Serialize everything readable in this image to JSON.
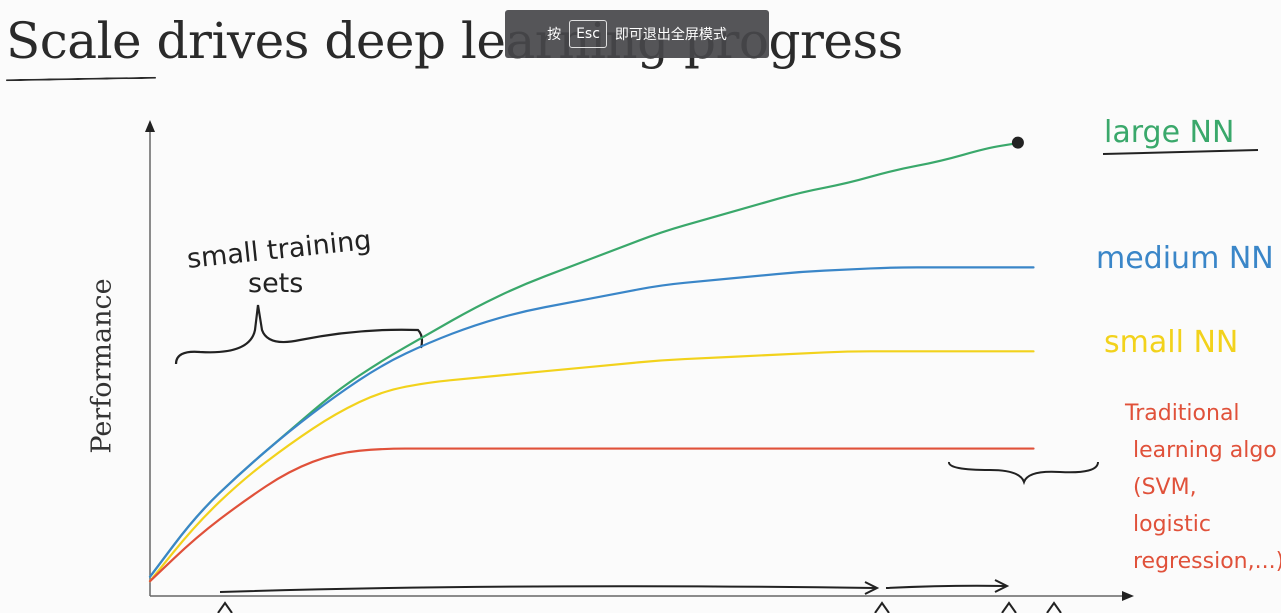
{
  "toast": {
    "press": "按",
    "key": "Esc",
    "message": "即可退出全屏模式"
  },
  "slide": {
    "title": "Scale drives deep learning progress",
    "annotation": [
      "small training",
      "sets"
    ]
  },
  "chart_data": {
    "type": "line",
    "title": "Scale drives deep learning progress",
    "xlabel": "",
    "ylabel": "Performance",
    "xlim": [
      0,
      1
    ],
    "ylim": [
      0,
      1
    ],
    "grid": false,
    "legend": "right, labels at line ends",
    "series": [
      {
        "name": "large NN",
        "color": "#3aa86b",
        "x": [
          0,
          0.05,
          0.1,
          0.15,
          0.2,
          0.25,
          0.3,
          0.35,
          0.4,
          0.45,
          0.5,
          0.55,
          0.6,
          0.65,
          0.7,
          0.75,
          0.8,
          0.85,
          0.9,
          0.93
        ],
        "y": [
          0.03,
          0.17,
          0.27,
          0.36,
          0.45,
          0.52,
          0.58,
          0.64,
          0.69,
          0.73,
          0.77,
          0.81,
          0.84,
          0.87,
          0.9,
          0.92,
          0.95,
          0.97,
          1.0,
          1.01
        ]
      },
      {
        "name": "medium NN",
        "color": "#3a86c8",
        "x": [
          0,
          0.05,
          0.1,
          0.15,
          0.2,
          0.25,
          0.3,
          0.35,
          0.4,
          0.45,
          0.5,
          0.55,
          0.6,
          0.65,
          0.7,
          0.75,
          0.8,
          0.85,
          0.9,
          0.95
        ],
        "y": [
          0.03,
          0.17,
          0.27,
          0.36,
          0.44,
          0.51,
          0.56,
          0.6,
          0.63,
          0.65,
          0.67,
          0.69,
          0.7,
          0.71,
          0.72,
          0.725,
          0.73,
          0.73,
          0.73,
          0.73
        ]
      },
      {
        "name": "small NN",
        "color": "#f2d21c",
        "x": [
          0,
          0.05,
          0.1,
          0.15,
          0.2,
          0.25,
          0.3,
          0.35,
          0.4,
          0.45,
          0.5,
          0.55,
          0.6,
          0.65,
          0.7,
          0.75,
          0.8,
          0.85,
          0.9,
          0.95
        ],
        "y": [
          0.02,
          0.15,
          0.25,
          0.33,
          0.4,
          0.45,
          0.47,
          0.48,
          0.49,
          0.5,
          0.51,
          0.52,
          0.525,
          0.53,
          0.535,
          0.54,
          0.54,
          0.54,
          0.54,
          0.54
        ]
      },
      {
        "name": "Traditional learning algo (SVM, logistic regression,...)",
        "color": "#e0513a",
        "x": [
          0,
          0.05,
          0.1,
          0.15,
          0.2,
          0.25,
          0.3,
          0.35,
          0.4,
          0.45,
          0.5,
          0.55,
          0.6,
          0.65,
          0.7,
          0.75,
          0.8,
          0.85,
          0.9,
          0.95
        ],
        "y": [
          0.02,
          0.12,
          0.2,
          0.27,
          0.31,
          0.32,
          0.32,
          0.32,
          0.32,
          0.32,
          0.32,
          0.32,
          0.32,
          0.32,
          0.32,
          0.32,
          0.32,
          0.32,
          0.32,
          0.32
        ]
      }
    ],
    "series_labels": [
      {
        "series": 0,
        "lines": [
          "large NN"
        ]
      },
      {
        "series": 1,
        "lines": [
          "medium NN"
        ]
      },
      {
        "series": 2,
        "lines": [
          "small NN"
        ]
      },
      {
        "series": 3,
        "lines": [
          "Traditional",
          "learning algo",
          "(SVM,",
          "logistic",
          "regression,...)"
        ]
      }
    ]
  }
}
